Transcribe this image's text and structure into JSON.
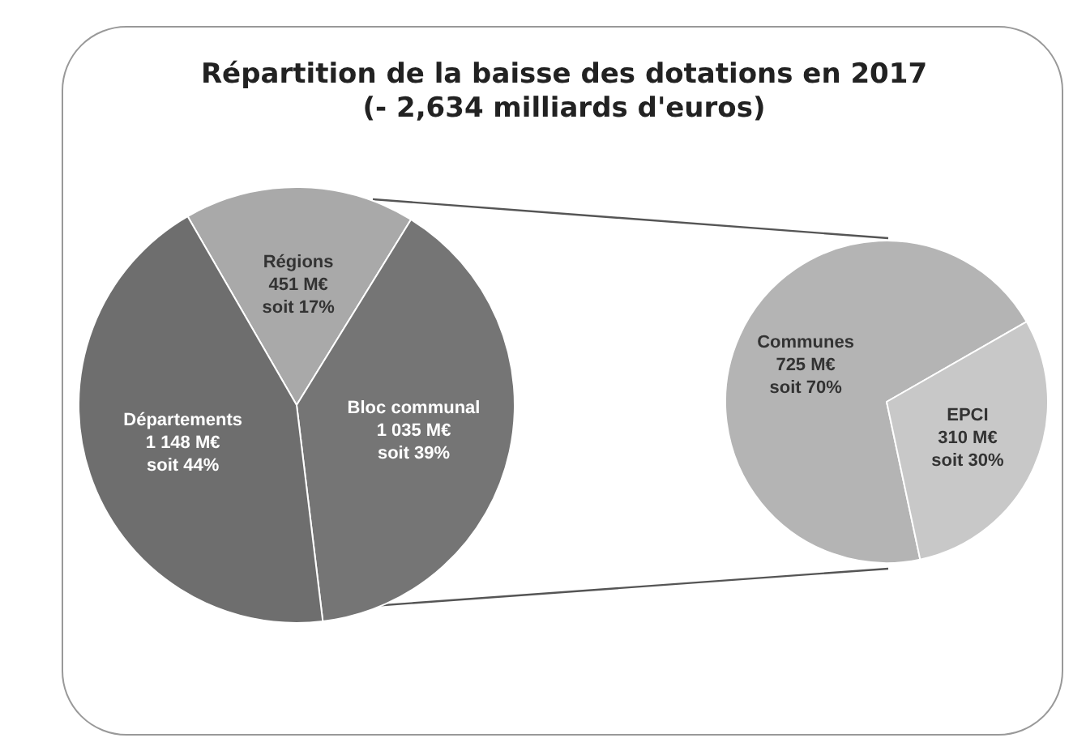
{
  "chart_data": [
    {
      "type": "pie",
      "title": "Répartition de la baisse des dotations en 2017",
      "subtitle": "(- 2,634 milliards d'euros)",
      "categories": [
        "Régions",
        "Bloc communal",
        "Départements"
      ],
      "values": [
        451,
        1035,
        1148
      ],
      "value_labels": [
        "451 M€ soit 17%",
        "1 035 M€ soit 39%",
        "1 148 M€ soit 44%"
      ],
      "colors": [
        "#a9a9a9",
        "#757575",
        "#6e6e6e"
      ],
      "legend": false
    },
    {
      "type": "pie",
      "categories": [
        "Communes",
        "EPCI"
      ],
      "values": [
        725,
        310
      ],
      "value_labels": [
        "725 M€ soit 70%",
        "310 M€ soit 30%"
      ],
      "colors": [
        "#b4b4b4",
        "#c8c8c8"
      ],
      "legend": false
    }
  ]
}
